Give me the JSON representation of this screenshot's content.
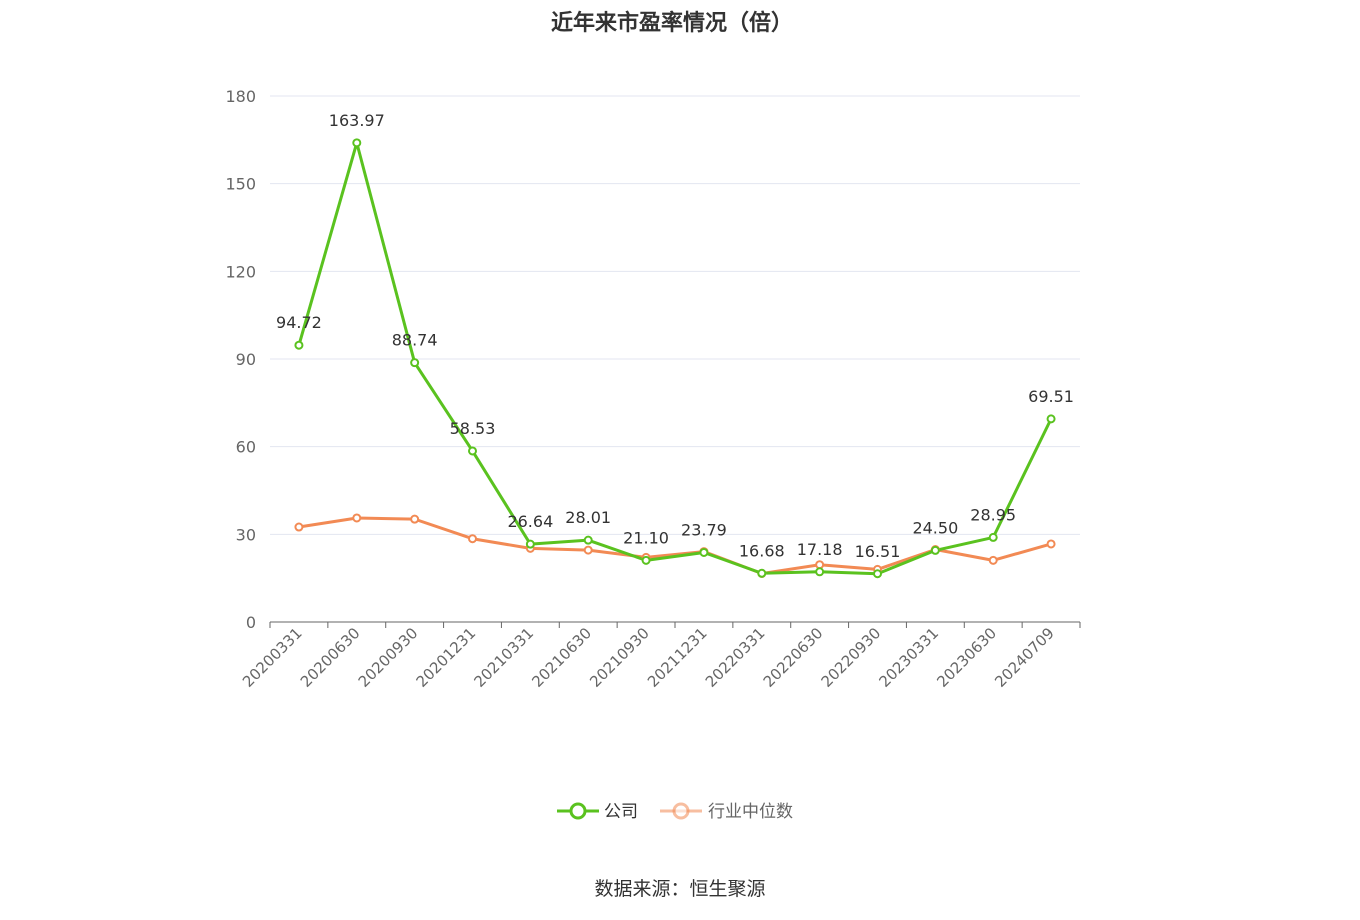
{
  "colors": {
    "company": "#5ac21f",
    "industry": "#f28a54",
    "grid": "#e3e6f0",
    "axis": "#666666"
  },
  "chart_data": {
    "type": "line",
    "title": "近年来市盈率情况（倍）",
    "categories": [
      "20200331",
      "20200630",
      "20200930",
      "20201231",
      "20210331",
      "20210630",
      "20210930",
      "20211231",
      "20220331",
      "20220630",
      "20220930",
      "20230331",
      "20230630",
      "20240709"
    ],
    "series": [
      {
        "name": "公司",
        "values": [
          94.72,
          163.97,
          88.74,
          58.53,
          26.64,
          28.01,
          21.1,
          23.79,
          16.68,
          17.18,
          16.51,
          24.5,
          28.95,
          69.51
        ],
        "labels": [
          "94.72",
          "163.97",
          "88.74",
          "58.53",
          "26.64",
          "28.01",
          "21.10",
          "23.79",
          "16.68",
          "17.18",
          "16.51",
          "24.50",
          "28.95",
          "69.51"
        ]
      },
      {
        "name": "行业中位数",
        "values": [
          32.5,
          35.6,
          35.2,
          28.5,
          25.2,
          24.6,
          22.1,
          24.1,
          16.6,
          19.6,
          18.0,
          24.8,
          21.1,
          26.7
        ]
      }
    ],
    "yticks": [
      "0",
      "30",
      "60",
      "90",
      "120",
      "150",
      "180"
    ],
    "ylim": [
      0,
      180
    ],
    "grid": true,
    "legend": "bottom"
  },
  "source": "数据来源：恒生聚源"
}
